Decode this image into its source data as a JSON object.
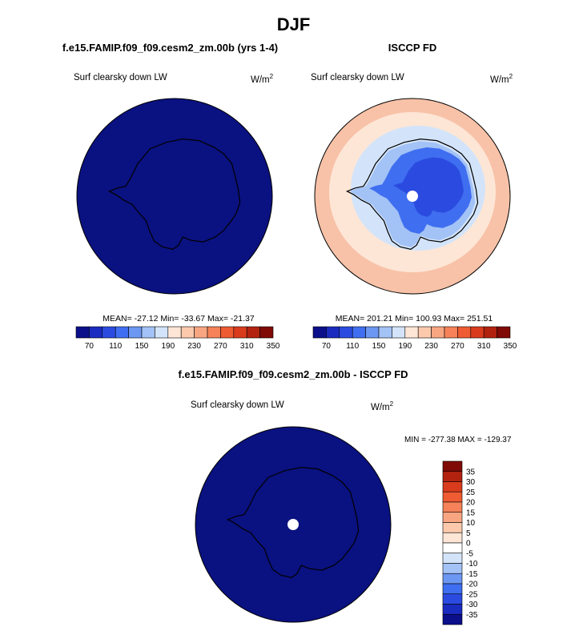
{
  "title": "DJF",
  "panels": {
    "model": {
      "case": "f.e15.FAMIP.f09_f09.cesm2_zm.00b (yrs 1-4)",
      "variable": "Surf clearsky down LW",
      "units": "W/m",
      "units_exp": "2",
      "stats": "MEAN= -27.12  Min= -33.67  Max= -21.37"
    },
    "obs": {
      "case": "ISCCP FD",
      "variable": "Surf clearsky down LW",
      "units": "W/m",
      "units_exp": "2",
      "stats": "MEAN= 201.21  Min= 100.93  Max= 251.51"
    },
    "diff": {
      "case": "f.e15.FAMIP.f09_f09.cesm2_zm.00b - ISCCP FD",
      "variable": "Surf clearsky down LW",
      "units": "W/m",
      "units_exp": "2",
      "stats": "MIN = -277.38 MAX = -129.37"
    }
  },
  "chart_data": [
    {
      "type": "heatmap",
      "title": "f.e15.FAMIP.f09_f09.cesm2_zm.00b (yrs 1-4)",
      "projection": "polar stereographic, south pole",
      "variable": "Surf clearsky down LW",
      "units": "W/m2",
      "mean": -27.12,
      "min": -33.67,
      "max": -21.37,
      "colorbar_ticks": [
        "70",
        "110",
        "150",
        "190",
        "230",
        "270",
        "310",
        "350"
      ],
      "colorbar_colors": [
        "#0c0f8a",
        "#1a2bbf",
        "#2b4be0",
        "#3f6ef0",
        "#6c97f2",
        "#a3c2f6",
        "#d3e4fa",
        "#fde6d6",
        "#fcc9ad",
        "#f8a682",
        "#f58259",
        "#ef5b32",
        "#d93b1d",
        "#b2230f",
        "#7f0a06"
      ],
      "colorbar_orientation": "horizontal",
      "field_color": "#0a1180"
    },
    {
      "type": "heatmap",
      "title": "ISCCP FD",
      "projection": "polar stereographic, south pole",
      "variable": "Surf clearsky down LW",
      "units": "W/m2",
      "mean": 201.21,
      "min": 100.93,
      "max": 251.51,
      "colorbar_ticks": [
        "70",
        "110",
        "150",
        "190",
        "230",
        "270",
        "310",
        "350"
      ],
      "colorbar_colors": [
        "#0c0f8a",
        "#1a2bbf",
        "#2b4be0",
        "#3f6ef0",
        "#6c97f2",
        "#a3c2f6",
        "#d3e4fa",
        "#fde6d6",
        "#fcc9ad",
        "#f8a682",
        "#f58259",
        "#ef5b32",
        "#d93b1d",
        "#b2230f",
        "#7f0a06"
      ],
      "colorbar_orientation": "horizontal",
      "field_layers": [
        "#f8c2a8",
        "#fde6d6",
        "#d3e4fa",
        "#a3c2f6",
        "#3f6ef0",
        "#2b4be0"
      ]
    },
    {
      "type": "heatmap",
      "title": "f.e15.FAMIP.f09_f09.cesm2_zm.00b - ISCCP FD",
      "projection": "polar stereographic, south pole",
      "variable": "Surf clearsky down LW",
      "units": "W/m2",
      "min": -277.38,
      "max": -129.37,
      "colorbar_ticks": [
        "35",
        "30",
        "25",
        "20",
        "15",
        "10",
        "5",
        "0",
        "-5",
        "-10",
        "-15",
        "-20",
        "-25",
        "-30",
        "-35"
      ],
      "colorbar_colors": [
        "#7f0a06",
        "#b2230f",
        "#d93b1d",
        "#ef5b32",
        "#f58259",
        "#f8a682",
        "#fcc9ad",
        "#fde6d6",
        "#ffffff",
        "#d3e4fa",
        "#a3c2f6",
        "#6c97f2",
        "#3f6ef0",
        "#2b4be0",
        "#1a2bbf",
        "#0c0f8a"
      ],
      "colorbar_orientation": "vertical",
      "field_color": "#0a1180"
    }
  ]
}
